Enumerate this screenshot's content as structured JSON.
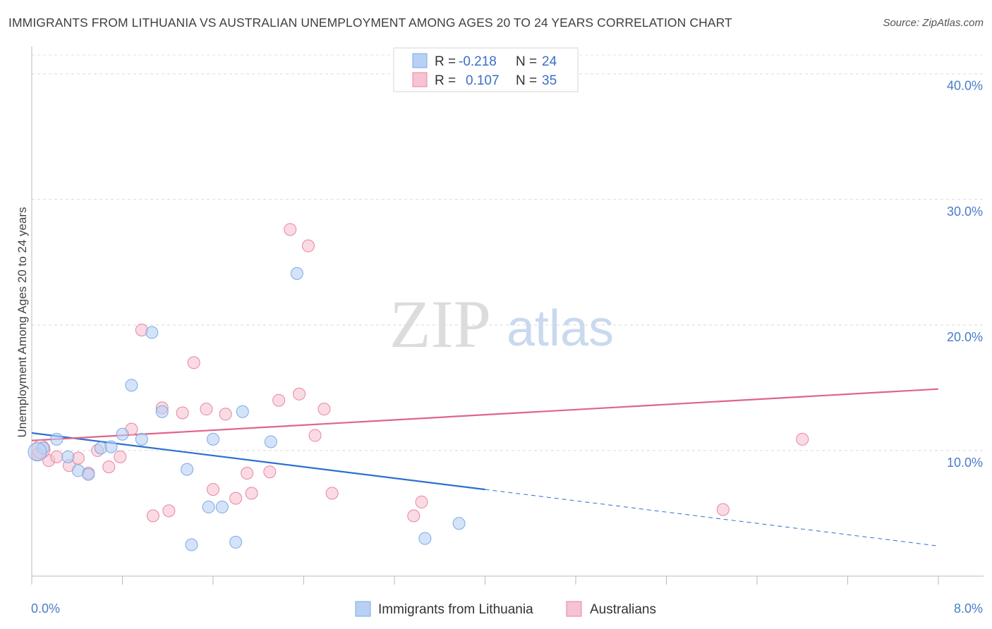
{
  "title": "IMMIGRANTS FROM LITHUANIA VS AUSTRALIAN UNEMPLOYMENT AMONG AGES 20 TO 24 YEARS CORRELATION CHART",
  "source": "Source: ZipAtlas.com",
  "watermark": {
    "zip": "ZIP",
    "atlas": "atlas"
  },
  "legend": {
    "rows": [
      {
        "r_label": "R =",
        "r_value": "-0.218",
        "n_label": "N =",
        "n_value": "24"
      },
      {
        "r_label": "R =",
        "r_value": "0.107",
        "n_label": "N =",
        "n_value": "35"
      }
    ]
  },
  "chart_data": {
    "type": "scatter",
    "ylabel": "Unemployment Among Ages 20 to 24 years",
    "x_tick_labels": [
      "0.0%",
      "8.0%"
    ],
    "y_tick_labels": [
      "10.0%",
      "20.0%",
      "30.0%",
      "40.0%"
    ],
    "y_ticks": [
      10,
      20,
      30,
      40
    ],
    "xlim": [
      0,
      8
    ],
    "ylim": [
      0,
      41.5
    ],
    "grid": true,
    "series": [
      {
        "name": "Immigrants from Lithuania",
        "color": "#7aaae8",
        "fill": "#b7d0f3",
        "points": [
          [
            0.1,
            10.2
          ],
          [
            0.22,
            10.9
          ],
          [
            0.32,
            9.5
          ],
          [
            0.41,
            8.4
          ],
          [
            0.5,
            8.1
          ],
          [
            0.61,
            10.2
          ],
          [
            0.7,
            10.3
          ],
          [
            0.8,
            11.3
          ],
          [
            0.88,
            15.2
          ],
          [
            0.97,
            10.9
          ],
          [
            1.06,
            19.4
          ],
          [
            1.15,
            13.1
          ],
          [
            1.37,
            8.5
          ],
          [
            1.41,
            2.5
          ],
          [
            1.56,
            5.5
          ],
          [
            1.6,
            10.9
          ],
          [
            1.68,
            5.5
          ],
          [
            1.8,
            2.7
          ],
          [
            1.86,
            13.1
          ],
          [
            2.11,
            10.7
          ],
          [
            2.34,
            24.1
          ],
          [
            3.47,
            3.0
          ],
          [
            3.77,
            4.2
          ],
          [
            0.05,
            9.9
          ]
        ],
        "trend": {
          "x0": 0.0,
          "y0": 11.4,
          "x1": 4.0,
          "y1": 6.9,
          "dash_to_x": 8.0,
          "dash_to_y": 2.4
        }
      },
      {
        "name": "Australians",
        "color": "#e8859f",
        "fill": "#f7c3d2",
        "points": [
          [
            0.05,
            9.7
          ],
          [
            0.15,
            9.2
          ],
          [
            0.22,
            9.5
          ],
          [
            0.33,
            8.8
          ],
          [
            0.41,
            9.4
          ],
          [
            0.5,
            8.2
          ],
          [
            0.58,
            10.0
          ],
          [
            0.68,
            8.7
          ],
          [
            0.78,
            9.5
          ],
          [
            0.88,
            11.7
          ],
          [
            0.97,
            19.6
          ],
          [
            1.07,
            4.8
          ],
          [
            1.15,
            13.4
          ],
          [
            1.21,
            5.2
          ],
          [
            1.33,
            13.0
          ],
          [
            1.43,
            17.0
          ],
          [
            1.54,
            13.3
          ],
          [
            1.6,
            6.9
          ],
          [
            1.71,
            12.9
          ],
          [
            1.8,
            6.2
          ],
          [
            1.9,
            8.2
          ],
          [
            1.94,
            6.6
          ],
          [
            2.1,
            8.3
          ],
          [
            2.18,
            14.0
          ],
          [
            2.28,
            27.6
          ],
          [
            2.36,
            14.5
          ],
          [
            2.44,
            26.3
          ],
          [
            2.5,
            11.2
          ],
          [
            2.58,
            13.3
          ],
          [
            2.65,
            6.6
          ],
          [
            3.37,
            4.8
          ],
          [
            3.44,
            5.9
          ],
          [
            6.1,
            5.3
          ],
          [
            6.8,
            10.9
          ],
          [
            0.08,
            10.1
          ]
        ],
        "trend": {
          "x0": 0.0,
          "y0": 10.8,
          "x1": 8.0,
          "y1": 14.9
        }
      }
    ]
  }
}
